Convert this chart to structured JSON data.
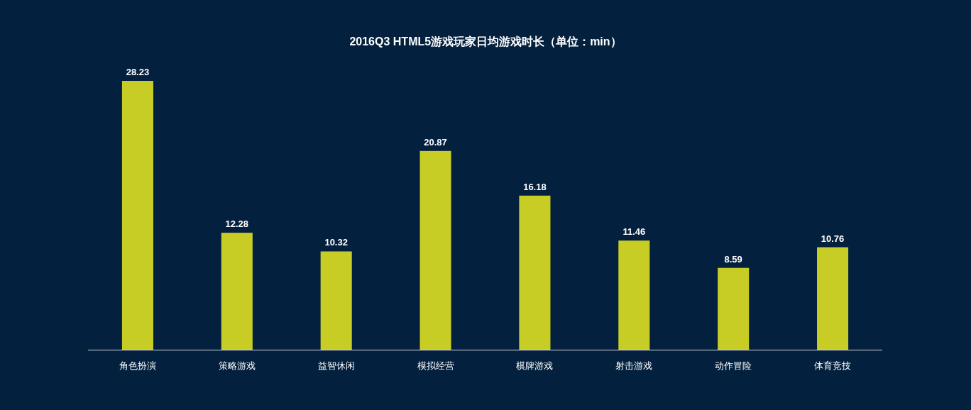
{
  "chart_data": {
    "type": "bar",
    "title": "2016Q3 HTML5游戏玩家日均游戏时长（单位：min）",
    "categories": [
      "角色扮演",
      "策略游戏",
      "益智休闲",
      "模拟经营",
      "棋牌游戏",
      "射击游戏",
      "动作冒险",
      "体育竞技"
    ],
    "values": [
      28.23,
      12.28,
      10.32,
      20.87,
      16.18,
      11.46,
      8.59,
      10.76
    ],
    "color": "#c8cd25",
    "data_labels": true
  }
}
